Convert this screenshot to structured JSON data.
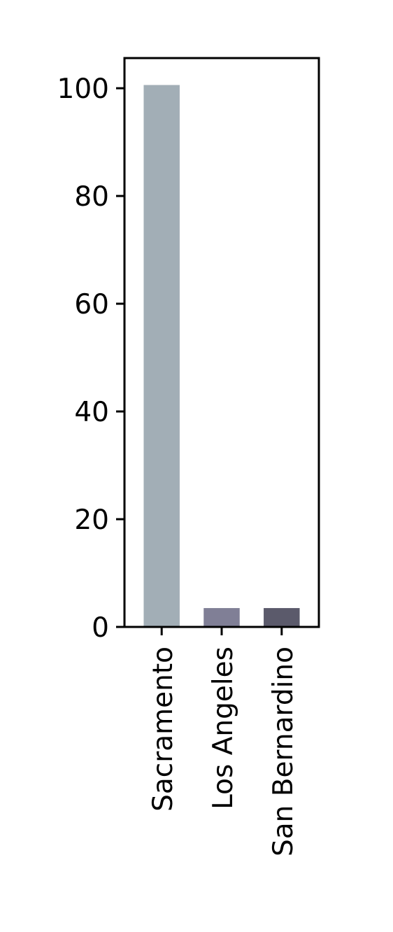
{
  "chart_data": {
    "type": "bar",
    "title": "",
    "xlabel": "",
    "ylabel": "",
    "categories": [
      "Sacramento",
      "Los Angeles",
      "San Bernardino"
    ],
    "values": [
      100.6,
      3.5,
      3.5
    ],
    "colors": [
      "#a2aeb6",
      "#807f96",
      "#5b5a6b"
    ],
    "ylim": [
      0,
      105.6
    ],
    "yticks": [
      0,
      20,
      40,
      60,
      80,
      100
    ],
    "ytick_labels": [
      "0",
      "20",
      "40",
      "60",
      "80",
      "100"
    ],
    "grid": false,
    "legend": "none"
  }
}
